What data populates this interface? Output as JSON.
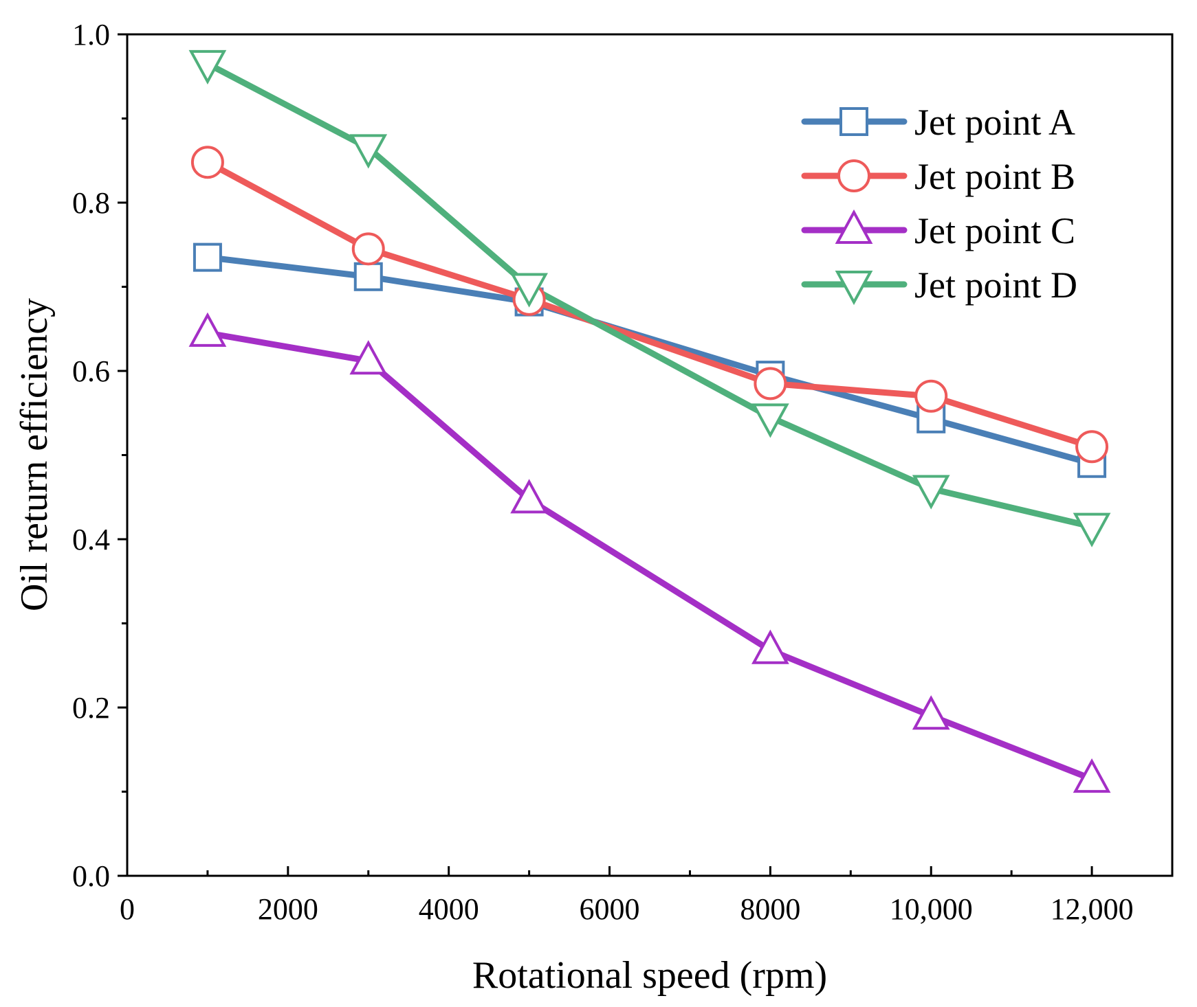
{
  "chart_data": {
    "type": "line",
    "title": "",
    "xlabel": "Rotational speed (rpm)",
    "ylabel": "Oil return efficiency",
    "xlim": [
      0,
      13000
    ],
    "ylim": [
      0.0,
      1.0
    ],
    "x_major_ticks": [
      0,
      2000,
      4000,
      6000,
      8000,
      10000,
      12000
    ],
    "x_tick_labels": [
      "0",
      "2000",
      "4000",
      "6000",
      "8000",
      "10,000",
      "12,000"
    ],
    "x_minor_ticks": [
      1000,
      3000,
      5000,
      7000,
      9000,
      11000
    ],
    "y_major_ticks": [
      0.0,
      0.2,
      0.4,
      0.6,
      0.8,
      1.0
    ],
    "y_tick_labels": [
      "0.0",
      "0.2",
      "0.4",
      "0.6",
      "0.8",
      "1.0"
    ],
    "y_minor_ticks": [
      0.1,
      0.3,
      0.5,
      0.7,
      0.9
    ],
    "grid": false,
    "legend_position": "top-right",
    "x": [
      1000,
      3000,
      5000,
      8000,
      10000,
      12000
    ],
    "series": [
      {
        "name": "Jet point A",
        "values": [
          0.735,
          0.712,
          0.682,
          0.595,
          0.543,
          0.49
        ],
        "color": "#4a7fb6",
        "marker": "square"
      },
      {
        "name": "Jet point B",
        "values": [
          0.848,
          0.745,
          0.685,
          0.585,
          0.57,
          0.51
        ],
        "color": "#ee5a5a",
        "marker": "circle"
      },
      {
        "name": "Jet point C",
        "values": [
          0.645,
          0.612,
          0.447,
          0.268,
          0.19,
          0.115
        ],
        "color": "#a42fc6",
        "marker": "triangle-up"
      },
      {
        "name": "Jet point D",
        "values": [
          0.965,
          0.865,
          0.7,
          0.545,
          0.46,
          0.415
        ],
        "color": "#4fb07c",
        "marker": "triangle-down"
      }
    ]
  }
}
